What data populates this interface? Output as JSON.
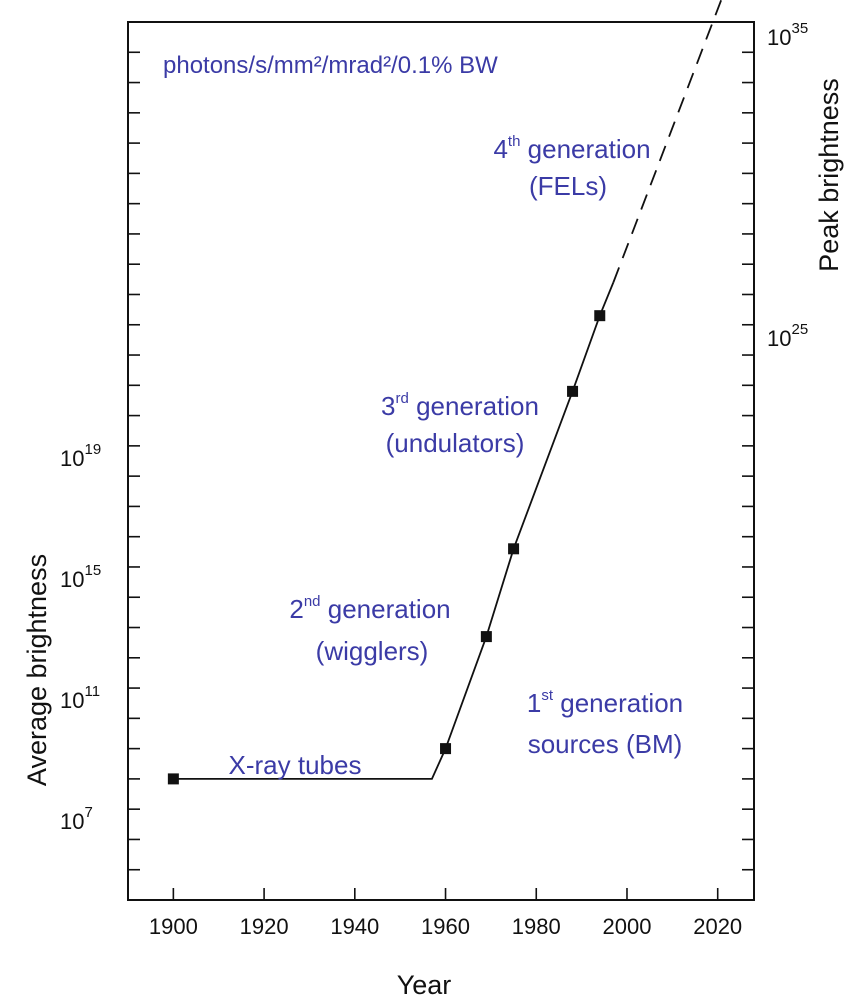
{
  "chart_data": {
    "type": "line",
    "xlabel": "Year",
    "ylabel": "Average brightness",
    "y2label": "Peak brightness",
    "xlim": [
      1890,
      2028
    ],
    "x_ticks": [
      1900,
      1920,
      1940,
      1960,
      1980,
      2000,
      2020
    ],
    "y_scale": "log",
    "ylim_log10": [
      4,
      33
    ],
    "y_tick_labels": [
      {
        "log10": 7,
        "base": "10",
        "exp": "7"
      },
      {
        "log10": 11,
        "base": "10",
        "exp": "11"
      },
      {
        "log10": 15,
        "base": "10",
        "exp": "15"
      },
      {
        "log10": 19,
        "base": "10",
        "exp": "19"
      }
    ],
    "y2_tick_labels": [
      {
        "base": "10",
        "exp": "25"
      },
      {
        "base": "10",
        "exp": "35"
      }
    ],
    "series": [
      {
        "style": "solid-with-markers",
        "x": [
          1900,
          1957,
          1960,
          1969,
          1975,
          1988,
          1994,
          1997
        ],
        "log10_y": [
          8,
          8,
          9,
          12.7,
          15.6,
          20.8,
          23.3,
          24.4
        ],
        "markers": [
          true,
          false,
          true,
          true,
          true,
          true,
          true,
          false
        ]
      },
      {
        "style": "dashed",
        "x": [
          1997,
          2023
        ],
        "log10_y": [
          24.4,
          34.6
        ]
      }
    ],
    "annotations": [
      {
        "id": "units",
        "text": "photons/s/mm²/mrad²/0.1% BW"
      },
      {
        "id": "gen4",
        "line1_pre": "4",
        "line1_sup": "th",
        "line1_post": " generation",
        "line2": "(FELs)"
      },
      {
        "id": "gen3",
        "line1_pre": "3",
        "line1_sup": "rd",
        "line1_post": " generation",
        "line2": "(undulators)"
      },
      {
        "id": "gen2",
        "line1_pre": "2",
        "line1_sup": "nd",
        "line1_post": " generation",
        "line2": "(wigglers)"
      },
      {
        "id": "gen1",
        "line1_pre": "1",
        "line1_sup": "st",
        "line1_post": " generation",
        "line2": "sources (BM)"
      },
      {
        "id": "xray",
        "text": "X-ray tubes"
      }
    ],
    "colors": {
      "annotation": "#3b3ba6",
      "line": "#111111",
      "axes": "#111111"
    }
  }
}
